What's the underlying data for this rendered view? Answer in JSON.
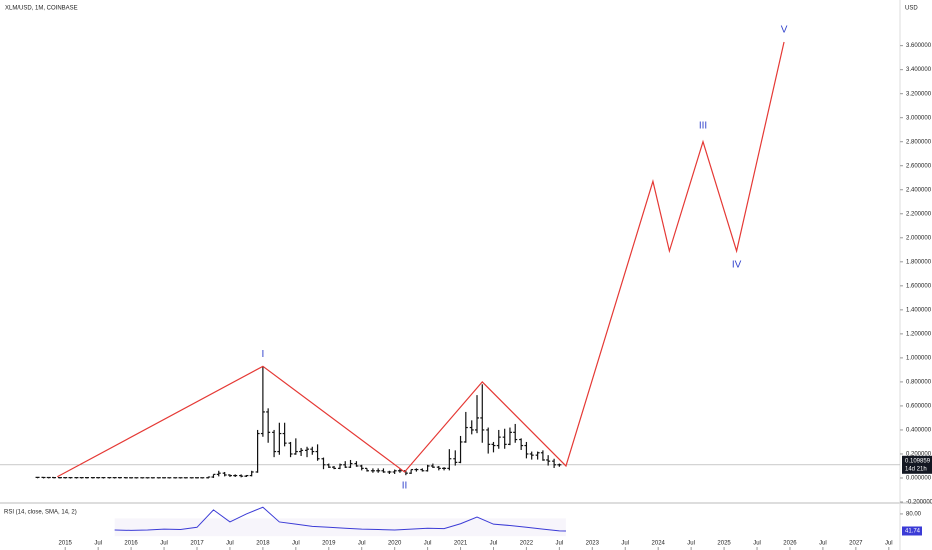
{
  "chart_data": {
    "type": "ohlc",
    "title": "XLM/USD, 1M, COINBASE",
    "currency": "USD",
    "color": "#111111",
    "xlim": [
      2014.01,
      2027.67
    ],
    "ylim": [
      -0.2,
      3.98
    ],
    "xticks": [
      2015,
      {
        "value": 2015.5,
        "label": "Jul"
      },
      2016,
      {
        "value": 2016.5,
        "label": "Jul"
      },
      2017,
      {
        "value": 2017.5,
        "label": "Jul"
      },
      2018,
      {
        "value": 2018.5,
        "label": "Jul"
      },
      2019,
      {
        "value": 2019.5,
        "label": "Jul"
      },
      2020,
      {
        "value": 2020.5,
        "label": "Jul"
      },
      2021,
      {
        "value": 2021.5,
        "label": "Jul"
      },
      2022,
      {
        "value": 2022.5,
        "label": "Jul"
      },
      2023,
      {
        "value": 2023.5,
        "label": "Jul"
      },
      2024,
      {
        "value": 2024.5,
        "label": "Jul"
      },
      2025,
      {
        "value": 2025.5,
        "label": "Jul"
      },
      2026,
      {
        "value": 2026.5,
        "label": "Jul"
      },
      2027,
      {
        "value": 2027.5,
        "label": "Jul"
      }
    ],
    "yticks": [
      {
        "value": -0.2,
        "label": "-0.200000"
      },
      {
        "value": 0,
        "label": "0.000000"
      },
      {
        "value": 0.2,
        "label": "0.200000"
      },
      {
        "value": 0.4,
        "label": "0.400000"
      },
      {
        "value": 0.6,
        "label": "0.600000"
      },
      {
        "value": 0.8,
        "label": "0.800000"
      },
      {
        "value": 1.0,
        "label": "1.000000"
      },
      {
        "value": 1.2,
        "label": "1.200000"
      },
      {
        "value": 1.4,
        "label": "1.400000"
      },
      {
        "value": 1.6,
        "label": "1.600000"
      },
      {
        "value": 1.8,
        "label": "1.800000"
      },
      {
        "value": 2.0,
        "label": "2.000000"
      },
      {
        "value": 2.2,
        "label": "2.200000"
      },
      {
        "value": 2.4,
        "label": "2.400000"
      },
      {
        "value": 2.6,
        "label": "2.600000"
      },
      {
        "value": 2.8,
        "label": "2.800000"
      },
      {
        "value": 3.0,
        "label": "3.000000"
      },
      {
        "value": 3.2,
        "label": "3.200000"
      },
      {
        "value": 3.4,
        "label": "3.400000"
      },
      {
        "value": 3.6,
        "label": "3.600000"
      }
    ],
    "x": [
      2014.58,
      2014.67,
      2014.75,
      2014.83,
      2014.92,
      2015.0,
      2015.08,
      2015.17,
      2015.25,
      2015.33,
      2015.42,
      2015.5,
      2015.58,
      2015.67,
      2015.75,
      2015.83,
      2015.92,
      2016.0,
      2016.08,
      2016.17,
      2016.25,
      2016.33,
      2016.42,
      2016.5,
      2016.58,
      2016.67,
      2016.75,
      2016.83,
      2016.92,
      2017.0,
      2017.08,
      2017.17,
      2017.25,
      2017.33,
      2017.42,
      2017.5,
      2017.58,
      2017.67,
      2017.75,
      2017.83,
      2017.92,
      2018.0,
      2018.08,
      2018.17,
      2018.25,
      2018.33,
      2018.42,
      2018.5,
      2018.58,
      2018.67,
      2018.75,
      2018.83,
      2018.92,
      2019.0,
      2019.08,
      2019.17,
      2019.25,
      2019.33,
      2019.42,
      2019.5,
      2019.58,
      2019.67,
      2019.75,
      2019.83,
      2019.92,
      2020.0,
      2020.08,
      2020.17,
      2020.25,
      2020.33,
      2020.42,
      2020.5,
      2020.58,
      2020.67,
      2020.75,
      2020.83,
      2020.92,
      2021.0,
      2021.08,
      2021.17,
      2021.25,
      2021.33,
      2021.42,
      2021.5,
      2021.58,
      2021.67,
      2021.75,
      2021.83,
      2021.92,
      2022.0,
      2022.08,
      2022.17,
      2022.25,
      2022.33,
      2022.42,
      2022.5
    ],
    "ohlc": [
      [
        0.005,
        0.008,
        0.004,
        0.005
      ],
      [
        0.005,
        0.006,
        0.003,
        0.004
      ],
      [
        0.004,
        0.005,
        0.003,
        0.004
      ],
      [
        0.004,
        0.005,
        0.003,
        0.003
      ],
      [
        0.003,
        0.004,
        0.002,
        0.003
      ],
      [
        0.003,
        0.004,
        0.002,
        0.003
      ],
      [
        0.003,
        0.004,
        0.002,
        0.003
      ],
      [
        0.003,
        0.004,
        0.002,
        0.003
      ],
      [
        0.003,
        0.004,
        0.002,
        0.003
      ],
      [
        0.003,
        0.004,
        0.002,
        0.003
      ],
      [
        0.003,
        0.004,
        0.002,
        0.003
      ],
      [
        0.003,
        0.004,
        0.002,
        0.003
      ],
      [
        0.003,
        0.004,
        0.002,
        0.003
      ],
      [
        0.003,
        0.004,
        0.002,
        0.003
      ],
      [
        0.003,
        0.004,
        0.002,
        0.003
      ],
      [
        0.003,
        0.004,
        0.002,
        0.003
      ],
      [
        0.003,
        0.004,
        0.002,
        0.002
      ],
      [
        0.002,
        0.003,
        0.002,
        0.002
      ],
      [
        0.002,
        0.003,
        0.002,
        0.002
      ],
      [
        0.002,
        0.003,
        0.002,
        0.002
      ],
      [
        0.002,
        0.003,
        0.002,
        0.002
      ],
      [
        0.002,
        0.003,
        0.002,
        0.002
      ],
      [
        0.002,
        0.003,
        0.002,
        0.002
      ],
      [
        0.002,
        0.003,
        0.002,
        0.002
      ],
      [
        0.002,
        0.003,
        0.002,
        0.002
      ],
      [
        0.002,
        0.003,
        0.002,
        0.002
      ],
      [
        0.002,
        0.003,
        0.002,
        0.002
      ],
      [
        0.002,
        0.003,
        0.002,
        0.002
      ],
      [
        0.002,
        0.003,
        0.002,
        0.002
      ],
      [
        0.002,
        0.003,
        0.002,
        0.002
      ],
      [
        0.002,
        0.003,
        0.002,
        0.002
      ],
      [
        0.002,
        0.01,
        0.002,
        0.008
      ],
      [
        0.008,
        0.03,
        0.007,
        0.03
      ],
      [
        0.03,
        0.06,
        0.02,
        0.04
      ],
      [
        0.04,
        0.05,
        0.02,
        0.025
      ],
      [
        0.025,
        0.03,
        0.015,
        0.02
      ],
      [
        0.02,
        0.03,
        0.015,
        0.02
      ],
      [
        0.02,
        0.03,
        0.012,
        0.015
      ],
      [
        0.015,
        0.025,
        0.015,
        0.02
      ],
      [
        0.02,
        0.06,
        0.02,
        0.05
      ],
      [
        0.05,
        0.4,
        0.05,
        0.37
      ],
      [
        0.37,
        0.93,
        0.35,
        0.55
      ],
      [
        0.55,
        0.58,
        0.3,
        0.38
      ],
      [
        0.38,
        0.4,
        0.18,
        0.22
      ],
      [
        0.22,
        0.46,
        0.2,
        0.37
      ],
      [
        0.37,
        0.46,
        0.27,
        0.29
      ],
      [
        0.29,
        0.3,
        0.18,
        0.2
      ],
      [
        0.2,
        0.33,
        0.2,
        0.22
      ],
      [
        0.22,
        0.25,
        0.19,
        0.23
      ],
      [
        0.23,
        0.26,
        0.18,
        0.24
      ],
      [
        0.24,
        0.26,
        0.2,
        0.22
      ],
      [
        0.22,
        0.28,
        0.15,
        0.16
      ],
      [
        0.16,
        0.17,
        0.08,
        0.11
      ],
      [
        0.11,
        0.12,
        0.09,
        0.09
      ],
      [
        0.09,
        0.1,
        0.08,
        0.08
      ],
      [
        0.08,
        0.12,
        0.08,
        0.11
      ],
      [
        0.11,
        0.14,
        0.09,
        0.09
      ],
      [
        0.09,
        0.15,
        0.09,
        0.12
      ],
      [
        0.12,
        0.14,
        0.1,
        0.1
      ],
      [
        0.1,
        0.11,
        0.07,
        0.08
      ],
      [
        0.08,
        0.08,
        0.06,
        0.06
      ],
      [
        0.06,
        0.08,
        0.05,
        0.06
      ],
      [
        0.06,
        0.08,
        0.05,
        0.06
      ],
      [
        0.06,
        0.08,
        0.05,
        0.05
      ],
      [
        0.05,
        0.06,
        0.04,
        0.05
      ],
      [
        0.05,
        0.07,
        0.04,
        0.06
      ],
      [
        0.06,
        0.08,
        0.05,
        0.06
      ],
      [
        0.06,
        0.06,
        0.03,
        0.04
      ],
      [
        0.04,
        0.07,
        0.04,
        0.07
      ],
      [
        0.07,
        0.08,
        0.06,
        0.07
      ],
      [
        0.07,
        0.08,
        0.06,
        0.06
      ],
      [
        0.06,
        0.11,
        0.06,
        0.1
      ],
      [
        0.1,
        0.12,
        0.09,
        0.09
      ],
      [
        0.09,
        0.1,
        0.07,
        0.08
      ],
      [
        0.08,
        0.09,
        0.07,
        0.08
      ],
      [
        0.08,
        0.24,
        0.07,
        0.16
      ],
      [
        0.16,
        0.23,
        0.11,
        0.13
      ],
      [
        0.13,
        0.35,
        0.13,
        0.3
      ],
      [
        0.3,
        0.55,
        0.3,
        0.42
      ],
      [
        0.42,
        0.48,
        0.37,
        0.4
      ],
      [
        0.4,
        0.69,
        0.38,
        0.5
      ],
      [
        0.5,
        0.78,
        0.3,
        0.4
      ],
      [
        0.4,
        0.42,
        0.21,
        0.28
      ],
      [
        0.28,
        0.3,
        0.22,
        0.27
      ],
      [
        0.27,
        0.4,
        0.25,
        0.34
      ],
      [
        0.34,
        0.41,
        0.25,
        0.28
      ],
      [
        0.28,
        0.42,
        0.28,
        0.38
      ],
      [
        0.38,
        0.45,
        0.3,
        0.32
      ],
      [
        0.32,
        0.33,
        0.24,
        0.27
      ],
      [
        0.27,
        0.3,
        0.17,
        0.2
      ],
      [
        0.2,
        0.22,
        0.16,
        0.19
      ],
      [
        0.19,
        0.22,
        0.16,
        0.21
      ],
      [
        0.21,
        0.23,
        0.15,
        0.15
      ],
      [
        0.15,
        0.19,
        0.11,
        0.14
      ],
      [
        0.14,
        0.16,
        0.09,
        0.11
      ],
      [
        0.11,
        0.12,
        0.1,
        0.11
      ]
    ],
    "last_price": 0.109859,
    "countdown": "14d 21h",
    "wave": {
      "color": "#e53935",
      "x": [
        2014.88,
        2018.0,
        2020.15,
        2021.33,
        2022.6,
        2023.92,
        2024.17,
        2024.68,
        2025.19,
        2025.91
      ],
      "values": [
        0.01,
        0.93,
        0.05,
        0.8,
        0.1,
        2.47,
        1.89,
        2.8,
        1.89,
        3.63
      ]
    },
    "wave_labels": [
      "I",
      "II",
      "III",
      "IV",
      "V"
    ],
    "rsi": {
      "title": "RSI (14, close, SMA, 14, 2)",
      "color": "#3b3bd6",
      "ylim": [
        0,
        100
      ],
      "yticks": [
        {
          "value": 80,
          "label": "80.00"
        }
      ],
      "current": 41.74,
      "x": [
        2015.75,
        2016.0,
        2016.25,
        2016.5,
        2016.75,
        2017.0,
        2017.25,
        2017.5,
        2017.75,
        2018.0,
        2018.25,
        2018.5,
        2018.75,
        2019.0,
        2019.25,
        2019.5,
        2019.75,
        2020.0,
        2020.25,
        2020.5,
        2020.75,
        2021.0,
        2021.25,
        2021.5,
        2021.75,
        2022.0,
        2022.25,
        2022.5,
        2022.6
      ],
      "values": [
        44,
        43,
        44,
        46,
        45,
        50,
        89,
        62,
        80,
        95,
        62,
        57,
        52,
        50,
        48,
        46,
        45,
        44,
        46,
        48,
        47,
        58,
        73,
        57,
        54,
        50,
        46,
        42,
        41.74
      ]
    }
  }
}
